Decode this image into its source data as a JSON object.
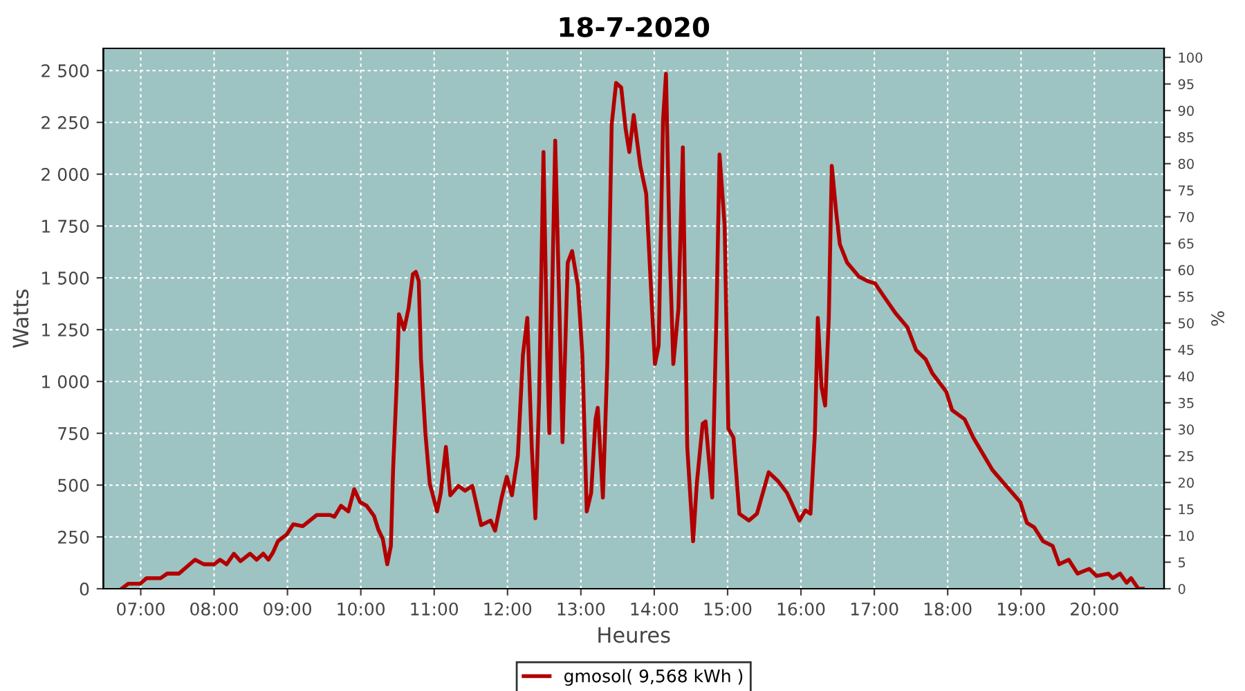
{
  "chart_data": {
    "type": "line",
    "title": "18-7-2020",
    "xlabel": "Heures",
    "ylabel": "Watts",
    "y2label": "%",
    "xlim": [
      6.49,
      20.95
    ],
    "xticks": [
      {
        "value": 7,
        "label": "07:00"
      },
      {
        "value": 8,
        "label": "08:00"
      },
      {
        "value": 9,
        "label": "09:00"
      },
      {
        "value": 10,
        "label": "10:00"
      },
      {
        "value": 11,
        "label": "11:00"
      },
      {
        "value": 12,
        "label": "12:00"
      },
      {
        "value": 13,
        "label": "13:00"
      },
      {
        "value": 14,
        "label": "14:00"
      },
      {
        "value": 15,
        "label": "15:00"
      },
      {
        "value": 16,
        "label": "16:00"
      },
      {
        "value": 17,
        "label": "17:00"
      },
      {
        "value": 18,
        "label": "18:00"
      },
      {
        "value": 19,
        "label": "19:00"
      },
      {
        "value": 20,
        "label": "20:00"
      }
    ],
    "ylim": [
      0,
      2607
    ],
    "yticks": [
      0,
      250,
      500,
      750,
      {
        "value": 1000,
        "label": "1 000"
      },
      {
        "value": 1250,
        "label": "1 250"
      },
      {
        "value": 1500,
        "label": "1 500"
      },
      {
        "value": 1750,
        "label": "1 750"
      },
      {
        "value": 2000,
        "label": "2 000"
      },
      {
        "value": 2250,
        "label": "2 250"
      },
      {
        "value": 2500,
        "label": "2 500"
      }
    ],
    "y2lim": [
      0,
      101.7
    ],
    "y2ticks": [
      0,
      5,
      10,
      15,
      20,
      25,
      30,
      35,
      40,
      45,
      50,
      55,
      60,
      65,
      70,
      75,
      80,
      85,
      90,
      95,
      100
    ],
    "grid": true,
    "legend": "bottom",
    "marker": "none",
    "line_style": "solid",
    "series": [
      {
        "name": "gmosol( 9,568 kWh )",
        "color": "#b20000",
        "x": [
          6.74,
          6.83,
          6.99,
          7.08,
          7.27,
          7.36,
          7.52,
          7.74,
          7.86,
          8.0,
          8.08,
          8.17,
          8.27,
          8.36,
          8.49,
          8.58,
          8.67,
          8.74,
          8.8,
          8.87,
          8.99,
          9.08,
          9.21,
          9.4,
          9.58,
          9.64,
          9.73,
          9.83,
          9.91,
          9.99,
          10.08,
          10.18,
          10.24,
          10.3,
          10.36,
          10.41,
          10.44,
          10.49,
          10.52,
          10.59,
          10.65,
          10.71,
          10.75,
          10.79,
          10.82,
          10.88,
          10.94,
          11.04,
          11.09,
          11.16,
          11.22,
          11.33,
          11.42,
          11.52,
          11.64,
          11.77,
          11.83,
          11.92,
          11.99,
          12.06,
          12.14,
          12.21,
          12.27,
          12.33,
          12.38,
          12.43,
          12.49,
          12.54,
          12.57,
          12.65,
          12.71,
          12.75,
          12.82,
          12.88,
          12.96,
          13.02,
          13.08,
          13.14,
          13.2,
          13.23,
          13.3,
          13.36,
          13.42,
          13.48,
          13.55,
          13.61,
          13.66,
          13.72,
          13.81,
          13.89,
          13.97,
          14.01,
          14.06,
          14.12,
          14.16,
          14.21,
          14.26,
          14.33,
          14.39,
          14.45,
          14.53,
          14.58,
          14.66,
          14.7,
          14.79,
          14.85,
          14.89,
          14.96,
          15.01,
          15.08,
          15.16,
          15.29,
          15.4,
          15.56,
          15.69,
          15.81,
          15.98,
          16.06,
          16.13,
          16.19,
          16.23,
          16.28,
          16.33,
          16.38,
          16.42,
          16.48,
          16.53,
          16.63,
          16.79,
          16.91,
          17.01,
          17.16,
          17.29,
          17.45,
          17.57,
          17.7,
          17.79,
          17.98,
          18.06,
          18.23,
          18.35,
          18.48,
          18.61,
          18.77,
          18.99,
          19.08,
          19.18,
          19.3,
          19.43,
          19.52,
          19.65,
          19.77,
          19.93,
          20.03,
          20.19,
          20.25,
          20.35,
          20.44,
          20.5,
          20.6,
          20.66
        ],
        "values": [
          0,
          24,
          24,
          51,
          51,
          73,
          73,
          140,
          118,
          118,
          140,
          118,
          169,
          133,
          169,
          140,
          169,
          140,
          173,
          229,
          262,
          311,
          302,
          356,
          356,
          347,
          400,
          373,
          480,
          418,
          400,
          351,
          284,
          240,
          118,
          207,
          573,
          995,
          1324,
          1251,
          1351,
          1518,
          1529,
          1484,
          1107,
          751,
          507,
          373,
          462,
          684,
          451,
          496,
          473,
          496,
          307,
          329,
          280,
          440,
          540,
          451,
          640,
          1129,
          1307,
          684,
          340,
          907,
          2107,
          1129,
          751,
          2162,
          1307,
          707,
          1573,
          1629,
          1462,
          1129,
          373,
          462,
          818,
          873,
          440,
          1084,
          2240,
          2440,
          2418,
          2218,
          2107,
          2285,
          2040,
          1907,
          1351,
          1084,
          1173,
          2262,
          2484,
          1640,
          1084,
          1351,
          2129,
          684,
          229,
          507,
          796,
          807,
          440,
          1351,
          2095,
          1751,
          773,
          729,
          362,
          329,
          362,
          562,
          518,
          462,
          329,
          378,
          362,
          751,
          1307,
          973,
          884,
          1307,
          2040,
          1818,
          1662,
          1573,
          1506,
          1484,
          1473,
          1395,
          1329,
          1262,
          1151,
          1107,
          1040,
          951,
          862,
          818,
          729,
          651,
          573,
          507,
          418,
          318,
          296,
          229,
          207,
          118,
          140,
          73,
          96,
          62,
          73,
          51,
          73,
          29,
          51,
          0,
          0
        ]
      }
    ]
  }
}
